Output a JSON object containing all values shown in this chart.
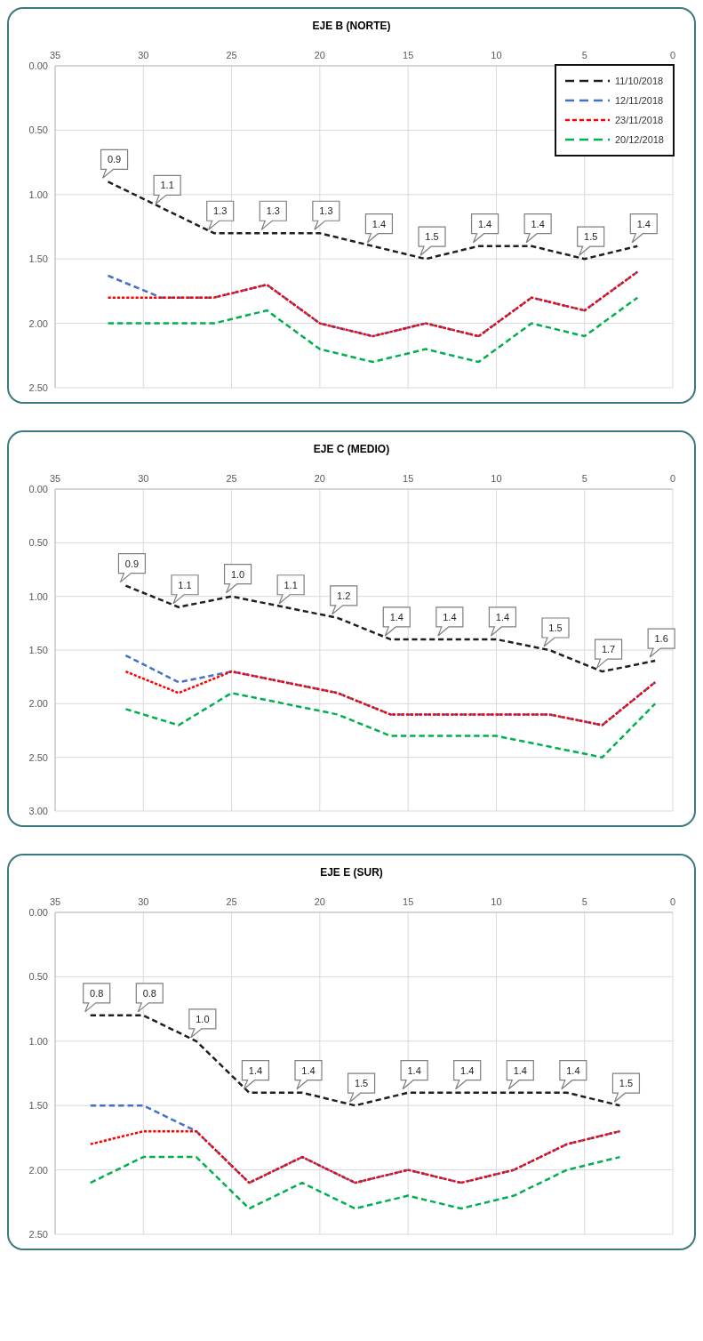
{
  "chart_data": [
    {
      "type": "line",
      "title": "EJE B (NORTE)",
      "xlim": [
        35,
        0
      ],
      "xticks": [
        35,
        30,
        25,
        20,
        15,
        10,
        5,
        0
      ],
      "ylim": [
        2.5,
        0
      ],
      "yticks": [
        {
          "value": 0,
          "label": "0.00"
        },
        {
          "value": 0.5,
          "label": "0.50"
        },
        {
          "value": 1,
          "label": "1.00"
        },
        {
          "value": 1.5,
          "label": "1.50"
        },
        {
          "value": 2,
          "label": "2.00"
        },
        {
          "value": 2.5,
          "label": "2.50"
        }
      ],
      "grid": true,
      "legend": "top right",
      "marker": "none",
      "x": [
        32,
        29,
        26,
        23,
        20,
        17,
        14,
        11,
        8,
        5,
        2
      ],
      "series": [
        {
          "name": "11/10/2018",
          "color": "#1f1f1f",
          "line_style": "dashed",
          "values": [
            0.9,
            1.1,
            1.3,
            1.3,
            1.3,
            1.4,
            1.5,
            1.4,
            1.4,
            1.5,
            1.4
          ],
          "value_labels": [
            "0.9",
            "1.1",
            "1.3",
            "1.3",
            "1.3",
            "1.4",
            "1.5",
            "1.4",
            "1.4",
            "1.5",
            "1.4"
          ]
        },
        {
          "name": "12/11/2018",
          "color": "#4472c4",
          "line_style": "dashed",
          "values": [
            1.63,
            1.8,
            1.8,
            1.7,
            2.0,
            2.1,
            2.0,
            2.1,
            1.8,
            1.9,
            1.6
          ]
        },
        {
          "name": "23/11/2018",
          "color": "#ff0000",
          "line_style": "dotted",
          "values": [
            1.8,
            1.8,
            1.8,
            1.7,
            2.0,
            2.1,
            2.0,
            2.1,
            1.8,
            1.9,
            1.6
          ]
        },
        {
          "name": "20/12/2018",
          "color": "#00b050",
          "line_style": "dashed",
          "values": [
            2.0,
            2.0,
            2.0,
            1.9,
            2.2,
            2.3,
            2.2,
            2.3,
            2.0,
            2.1,
            1.8
          ]
        }
      ]
    },
    {
      "type": "line",
      "title": "EJE C (MEDIO)",
      "xlim": [
        35,
        0
      ],
      "xticks": [
        35,
        30,
        25,
        20,
        15,
        10,
        5,
        0
      ],
      "ylim": [
        3,
        0
      ],
      "yticks": [
        {
          "value": 0,
          "label": "0.00"
        },
        {
          "value": 0.5,
          "label": "0.50"
        },
        {
          "value": 1,
          "label": "1.00"
        },
        {
          "value": 1.5,
          "label": "1.50"
        },
        {
          "value": 2,
          "label": "2.00"
        },
        {
          "value": 2.5,
          "label": "2.50"
        },
        {
          "value": 3,
          "label": "3.00"
        }
      ],
      "grid": true,
      "marker": "none",
      "x": [
        31,
        28,
        25,
        22,
        19,
        16,
        13,
        10,
        7,
        4,
        1
      ],
      "series": [
        {
          "color": "#1f1f1f",
          "line_style": "dashed",
          "values": [
            0.9,
            1.1,
            1.0,
            1.1,
            1.2,
            1.4,
            1.4,
            1.4,
            1.5,
            1.7,
            1.6
          ],
          "value_labels": [
            "0.9",
            "1.1",
            "1.0",
            "1.1",
            "1.2",
            "1.4",
            "1.4",
            "1.4",
            "1.5",
            "1.7",
            "1.6"
          ]
        },
        {
          "color": "#4472c4",
          "line_style": "dashed",
          "values": [
            1.55,
            1.8,
            1.7,
            1.8,
            1.9,
            2.1,
            2.1,
            2.1,
            2.1,
            2.2,
            1.8
          ]
        },
        {
          "color": "#ff0000",
          "line_style": "dotted",
          "values": [
            1.7,
            1.9,
            1.7,
            1.8,
            1.9,
            2.1,
            2.1,
            2.1,
            2.1,
            2.2,
            1.8
          ]
        },
        {
          "color": "#00b050",
          "line_style": "dashed",
          "values": [
            2.05,
            2.2,
            1.9,
            2.0,
            2.1,
            2.3,
            2.3,
            2.3,
            2.4,
            2.5,
            2.0
          ]
        }
      ]
    },
    {
      "type": "line",
      "title": "EJE E (SUR)",
      "xlim": [
        35,
        0
      ],
      "xticks": [
        35,
        30,
        25,
        20,
        15,
        10,
        5,
        0
      ],
      "ylim": [
        2.5,
        0
      ],
      "yticks": [
        {
          "value": 0,
          "label": "0.00"
        },
        {
          "value": 0.5,
          "label": "0.50"
        },
        {
          "value": 1,
          "label": "1.00"
        },
        {
          "value": 1.5,
          "label": "1.50"
        },
        {
          "value": 2,
          "label": "2.00"
        },
        {
          "value": 2.5,
          "label": "2.50"
        }
      ],
      "grid": true,
      "marker": "none",
      "x": [
        33,
        30,
        27,
        24,
        21,
        18,
        15,
        12,
        9,
        6,
        3
      ],
      "series": [
        {
          "color": "#1f1f1f",
          "line_style": "dashed",
          "values": [
            0.8,
            0.8,
            1.0,
            1.4,
            1.4,
            1.5,
            1.4,
            1.4,
            1.4,
            1.4,
            1.5
          ],
          "value_labels": [
            "0.8",
            "0.8",
            "1.0",
            "1.4",
            "1.4",
            "1.5",
            "1.4",
            "1.4",
            "1.4",
            "1.4",
            "1.5"
          ]
        },
        {
          "color": "#4472c4",
          "line_style": "dashed",
          "values": [
            1.5,
            1.5,
            1.7,
            2.1,
            1.9,
            2.1,
            2.0,
            2.1,
            2.0,
            1.8,
            1.7
          ]
        },
        {
          "color": "#ff0000",
          "line_style": "dotted",
          "values": [
            1.8,
            1.7,
            1.7,
            2.1,
            1.9,
            2.1,
            2.0,
            2.1,
            2.0,
            1.8,
            1.7
          ]
        },
        {
          "color": "#00b050",
          "line_style": "dashed",
          "values": [
            2.1,
            1.9,
            1.9,
            2.3,
            2.1,
            2.3,
            2.2,
            2.3,
            2.2,
            2.0,
            1.9
          ]
        }
      ]
    }
  ]
}
